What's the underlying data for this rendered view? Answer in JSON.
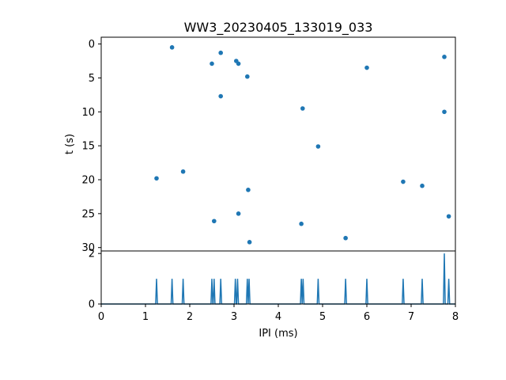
{
  "chart_data": [
    {
      "type": "scatter",
      "title": "WW3_20230405_133019_033",
      "xlabel": "",
      "ylabel": "t (s)",
      "xlim": [
        0,
        8
      ],
      "ylim": [
        30.5,
        -1
      ],
      "y_inverted": true,
      "yticks": [
        0,
        5,
        10,
        15,
        20,
        25,
        30
      ],
      "color": "#1f77b4",
      "points": [
        {
          "x": 1.6,
          "y": 0.5
        },
        {
          "x": 2.7,
          "y": 1.3
        },
        {
          "x": 2.5,
          "y": 2.9
        },
        {
          "x": 3.05,
          "y": 2.5
        },
        {
          "x": 3.1,
          "y": 2.9
        },
        {
          "x": 3.3,
          "y": 4.8
        },
        {
          "x": 2.7,
          "y": 7.7
        },
        {
          "x": 4.55,
          "y": 9.5
        },
        {
          "x": 6.0,
          "y": 3.5
        },
        {
          "x": 7.75,
          "y": 1.9
        },
        {
          "x": 7.75,
          "y": 10.0
        },
        {
          "x": 4.9,
          "y": 15.1
        },
        {
          "x": 1.85,
          "y": 18.8
        },
        {
          "x": 1.25,
          "y": 19.8
        },
        {
          "x": 3.32,
          "y": 21.5
        },
        {
          "x": 6.82,
          "y": 20.3
        },
        {
          "x": 7.25,
          "y": 20.9
        },
        {
          "x": 2.55,
          "y": 26.1
        },
        {
          "x": 3.1,
          "y": 25.0
        },
        {
          "x": 4.52,
          "y": 26.5
        },
        {
          "x": 7.85,
          "y": 25.4
        },
        {
          "x": 5.52,
          "y": 28.6
        },
        {
          "x": 3.35,
          "y": 29.2
        }
      ]
    },
    {
      "type": "line",
      "title": "",
      "xlabel": "IPI (ms)",
      "ylabel": "",
      "xlim": [
        0,
        8
      ],
      "ylim": [
        0,
        2.1
      ],
      "xticks": [
        0,
        1,
        2,
        3,
        4,
        5,
        6,
        7,
        8
      ],
      "yticks": [
        0,
        2
      ],
      "color": "#1f77b4",
      "bin_width": 0.02,
      "peaks": [
        {
          "x": 1.25,
          "y": 1
        },
        {
          "x": 1.6,
          "y": 1
        },
        {
          "x": 1.85,
          "y": 1
        },
        {
          "x": 2.5,
          "y": 1
        },
        {
          "x": 2.55,
          "y": 1
        },
        {
          "x": 2.7,
          "y": 1
        },
        {
          "x": 3.03,
          "y": 1
        },
        {
          "x": 3.08,
          "y": 1
        },
        {
          "x": 3.3,
          "y": 1
        },
        {
          "x": 3.34,
          "y": 1
        },
        {
          "x": 4.52,
          "y": 1
        },
        {
          "x": 4.56,
          "y": 1
        },
        {
          "x": 4.9,
          "y": 1
        },
        {
          "x": 5.52,
          "y": 1
        },
        {
          "x": 6.0,
          "y": 1
        },
        {
          "x": 6.82,
          "y": 1
        },
        {
          "x": 7.25,
          "y": 1
        },
        {
          "x": 7.75,
          "y": 2
        },
        {
          "x": 7.85,
          "y": 1
        }
      ]
    }
  ]
}
